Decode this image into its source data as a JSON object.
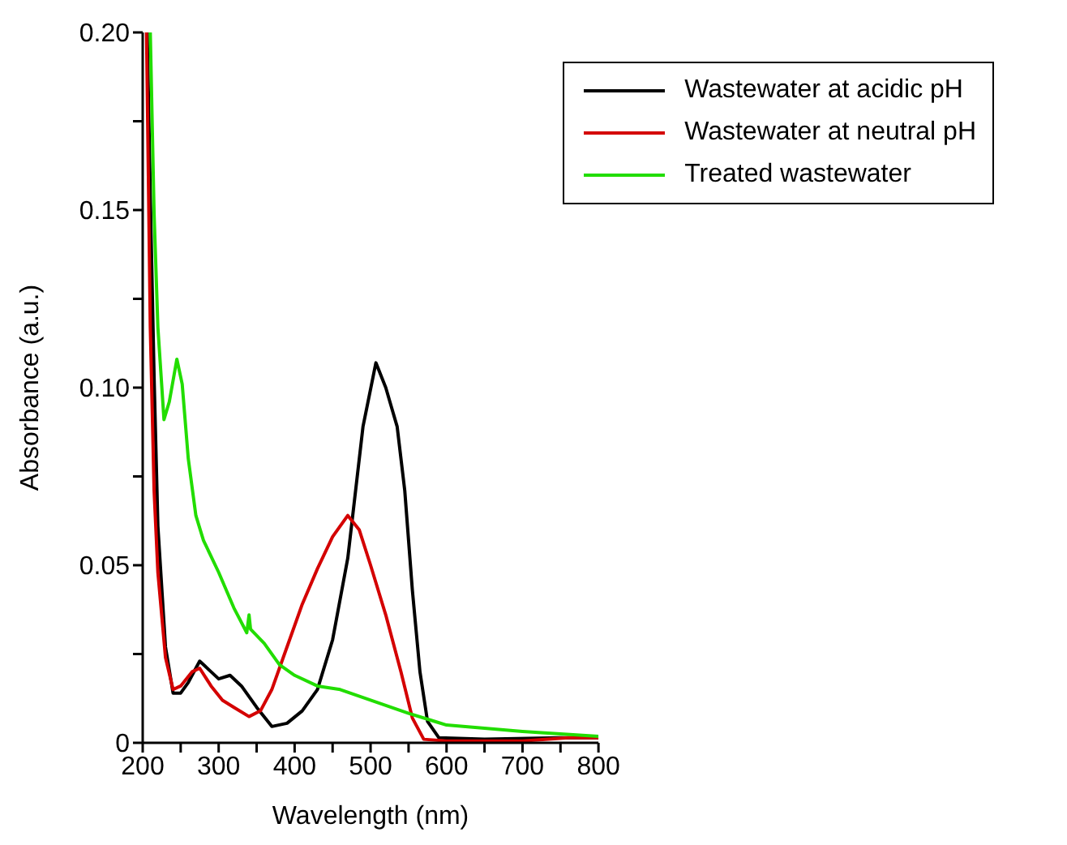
{
  "chart_data": {
    "type": "line",
    "xlabel": "Wavelength (nm)",
    "ylabel": "Absorbance (a.u.)",
    "xlim": [
      200,
      800
    ],
    "ylim": [
      0,
      0.2
    ],
    "xticks": [
      200,
      {
        "value": 250,
        "label": null
      },
      300,
      {
        "value": 350,
        "label": null
      },
      400,
      {
        "value": 450,
        "label": null
      },
      500,
      {
        "value": 550,
        "label": null
      },
      600,
      {
        "value": 650,
        "label": null
      },
      700,
      {
        "value": 750,
        "label": null
      },
      800
    ],
    "yticks": [
      0,
      {
        "value": 0.025,
        "label": null
      },
      0.05,
      {
        "value": 0.075,
        "label": null
      },
      {
        "value": 0.1,
        "label": "0.10"
      },
      {
        "value": 0.125,
        "label": null
      },
      0.15,
      {
        "value": 0.175,
        "label": null
      },
      {
        "value": 0.2,
        "label": "0.20"
      }
    ],
    "grid": false,
    "legend": "top right",
    "marker": "none",
    "line_style": "solid",
    "series": [
      {
        "name": "Wastewater at acidic pH",
        "color": "#000000",
        "x": [
          206,
          210,
          215,
          220,
          230,
          240,
          250,
          260,
          275,
          290,
          300,
          315,
          330,
          350,
          370,
          390,
          410,
          430,
          450,
          470,
          490,
          507,
          520,
          535,
          545,
          555,
          565,
          575,
          590,
          650,
          750,
          800
        ],
        "values": [
          0.2,
          0.154,
          0.103,
          0.061,
          0.027,
          0.014,
          0.014,
          0.017,
          0.023,
          0.02,
          0.018,
          0.019,
          0.016,
          0.01,
          0.0046,
          0.0055,
          0.009,
          0.015,
          0.029,
          0.052,
          0.089,
          0.107,
          0.1,
          0.089,
          0.071,
          0.043,
          0.02,
          0.006,
          0.0014,
          0.001,
          0.0014,
          0.0014
        ]
      },
      {
        "name": "Wastewater at neutral pH",
        "color": "#d40000",
        "x": [
          205,
          210,
          215,
          220,
          230,
          240,
          250,
          265,
          275,
          290,
          305,
          320,
          340,
          355,
          370,
          390,
          410,
          430,
          450,
          470,
          485,
          500,
          520,
          540,
          555,
          570,
          600,
          700,
          760,
          800
        ],
        "values": [
          0.2,
          0.117,
          0.071,
          0.048,
          0.024,
          0.015,
          0.016,
          0.02,
          0.021,
          0.016,
          0.012,
          0.01,
          0.0074,
          0.009,
          0.015,
          0.027,
          0.039,
          0.049,
          0.058,
          0.064,
          0.06,
          0.05,
          0.036,
          0.02,
          0.007,
          0.001,
          0.0005,
          0.0005,
          0.0014,
          0.0014
        ]
      },
      {
        "name": "Treated wastewater",
        "color": "#22dd00",
        "x": [
          210,
          215,
          220,
          228,
          235,
          245,
          252,
          260,
          270,
          280,
          300,
          320,
          337,
          340,
          342,
          360,
          380,
          400,
          430,
          460,
          500,
          550,
          585,
          600,
          700,
          800
        ],
        "values": [
          0.2,
          0.149,
          0.117,
          0.091,
          0.096,
          0.108,
          0.101,
          0.08,
          0.064,
          0.057,
          0.048,
          0.038,
          0.031,
          0.036,
          0.032,
          0.028,
          0.022,
          0.019,
          0.016,
          0.015,
          0.012,
          0.0083,
          0.006,
          0.005,
          0.0032,
          0.0018
        ]
      }
    ]
  }
}
